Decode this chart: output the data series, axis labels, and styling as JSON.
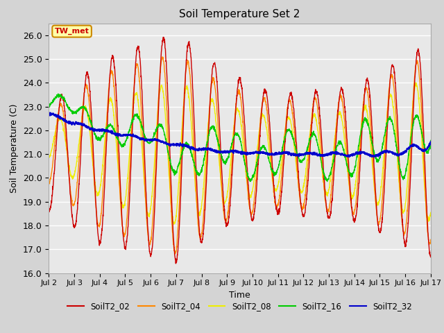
{
  "title": "Soil Temperature Set 2",
  "xlabel": "Time",
  "ylabel": "Soil Temperature (C)",
  "ylim": [
    16.0,
    26.5
  ],
  "yticks": [
    16.0,
    17.0,
    18.0,
    19.0,
    20.0,
    21.0,
    22.0,
    23.0,
    24.0,
    25.0,
    26.0
  ],
  "background_color": "#d4d4d4",
  "plot_bg_color": "#e8e8e8",
  "grid_color": "#ffffff",
  "annotation_label": "TW_met",
  "annotation_box_color": "#ffffaa",
  "annotation_border_color": "#cc8800",
  "series_colors": {
    "SoilT2_02": "#cc0000",
    "SoilT2_04": "#ff8800",
    "SoilT2_08": "#eeee00",
    "SoilT2_16": "#00cc00",
    "SoilT2_32": "#0000cc"
  },
  "xtick_labels": [
    "Jul 2",
    "Jul 3",
    "Jul 4",
    "Jul 5",
    "Jul 6",
    "Jul 7",
    "Jul 8",
    "Jul 9",
    "Jul 10",
    "Jul 11",
    "Jul 12",
    "Jul 13",
    "Jul 14",
    "Jul 15",
    "Jul 16",
    "Jul 17"
  ],
  "num_days": 15,
  "points_per_day": 144
}
